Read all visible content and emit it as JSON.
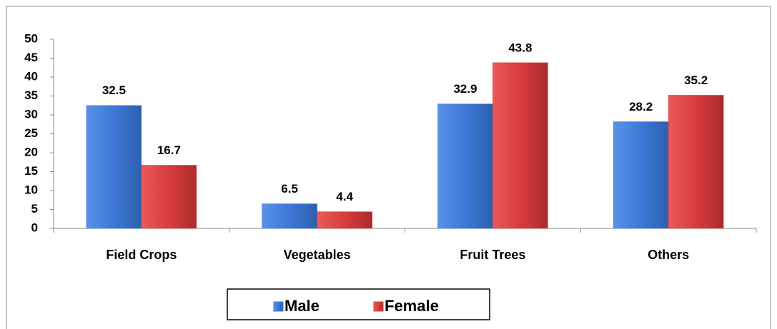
{
  "chart_data": {
    "type": "bar",
    "categories": [
      "Field Crops",
      "Vegetables",
      "Fruit Trees",
      "Others"
    ],
    "series": [
      {
        "name": "Male",
        "color": "#3c78d8",
        "values": [
          32.5,
          6.5,
          32.9,
          28.2
        ]
      },
      {
        "name": "Female",
        "color": "#d83c3c",
        "values": [
          16.7,
          4.4,
          43.8,
          35.2
        ]
      }
    ],
    "ylim": [
      0,
      50
    ],
    "yticks": [
      0,
      5,
      10,
      15,
      20,
      25,
      30,
      35,
      40,
      45,
      50
    ]
  }
}
